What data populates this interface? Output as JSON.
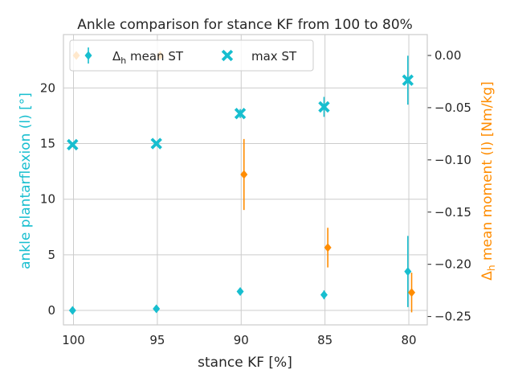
{
  "chart_data": {
    "type": "scatter",
    "title": "Ankle comparison for stance KF from 100 to 80%",
    "xlabel": "stance KF [%]",
    "ylabel_left": "ankle plantarflexion (l) [°]",
    "ylabel_right_prefix": "Δ",
    "ylabel_right_sub": "h",
    "ylabel_right_suffix": " mean moment (l) [Nm/kg]",
    "categories": [
      "100",
      "95",
      "90",
      "85",
      "80"
    ],
    "xlim": [
      100.6,
      78.9
    ],
    "ylim_left": [
      -1.3,
      24.8
    ],
    "ylim_right": [
      -0.258,
      0.02
    ],
    "yticks_left": [
      0,
      5,
      10,
      15,
      20
    ],
    "yticks_right": [
      0.0,
      -0.05,
      -0.1,
      -0.15,
      -0.2,
      -0.25
    ],
    "yticks_right_labels": [
      "0.00",
      "−0.05",
      "−0.10",
      "−0.15",
      "−0.20",
      "−0.25"
    ],
    "grid": true,
    "legend": {
      "location": "upper-left",
      "entries": [
        {
          "prefix": "Δ",
          "sub": "h",
          "text": " mean ST",
          "marker": "diamond-errorbar",
          "color": "#17becf"
        },
        {
          "prefix": "",
          "sub": "",
          "text": "max ST",
          "marker": "x-bold",
          "color": "#17becf"
        }
      ]
    },
    "series": [
      {
        "name": "Δh mean ST",
        "axis": "left",
        "marker": "diamond",
        "color": "#17becf",
        "x": [
          100,
          95,
          90,
          85,
          80
        ],
        "y": [
          0.0,
          0.15,
          1.7,
          1.4,
          3.5
        ],
        "err": [
          0.1,
          0.1,
          0.2,
          0.4,
          3.2
        ]
      },
      {
        "name": "max ST",
        "axis": "left",
        "marker": "x",
        "color": "#17becf",
        "x": [
          100,
          95,
          90,
          85,
          80
        ],
        "y": [
          14.9,
          15.0,
          17.7,
          18.3,
          20.7
        ],
        "err": [
          0.2,
          0.2,
          0.4,
          0.9,
          2.2
        ]
      },
      {
        "name": "",
        "axis": "right",
        "marker": "diamond",
        "color": "#ff8c00",
        "x": [
          100,
          95,
          90,
          85,
          80
        ],
        "y": [
          0.0,
          0.0,
          -0.114,
          -0.184,
          -0.227
        ],
        "err": [
          0.003,
          0.003,
          0.034,
          0.019,
          0.019
        ]
      }
    ],
    "colors": {
      "left_axis": "#17becf",
      "right_axis": "#ff8c00",
      "grid": "#cccccc",
      "spine": "#cccccc",
      "text": "#262626"
    }
  }
}
